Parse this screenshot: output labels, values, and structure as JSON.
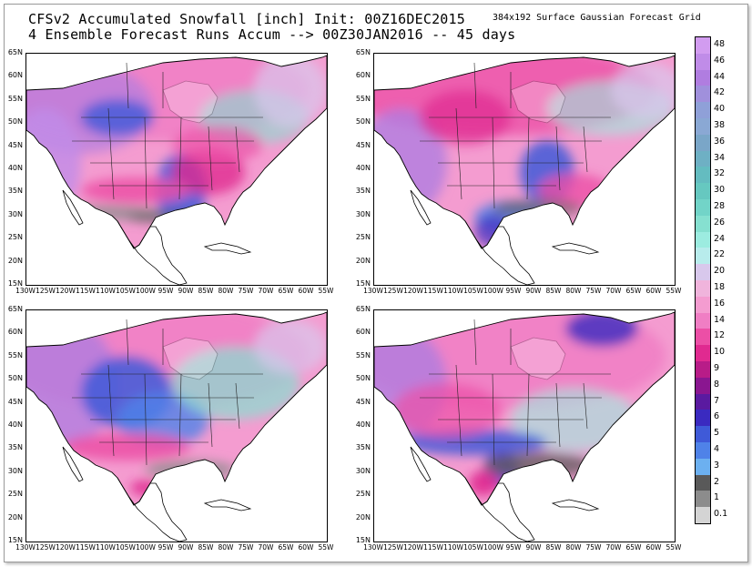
{
  "header": {
    "title_line1": "CFSv2 Accumulated Snowfall [inch] Init: 00Z16DEC2015",
    "title_line2": "4 Ensemble Forecast Runs Accum --> 00Z30JAN2016 -- 45 days",
    "grid_note": "384x192 Surface Gaussian Forecast Grid"
  },
  "axes": {
    "lat_labels": [
      "65N",
      "60N",
      "55N",
      "50N",
      "45N",
      "40N",
      "35N",
      "30N",
      "25N",
      "20N",
      "15N"
    ],
    "lon_labels": [
      "130W",
      "125W",
      "120W",
      "115W",
      "110W",
      "105W",
      "100W",
      "95W",
      "90W",
      "85W",
      "80W",
      "75W",
      "70W",
      "65W",
      "60W",
      "55W"
    ]
  },
  "panels": [
    {
      "id": "run-1",
      "variant": 0
    },
    {
      "id": "run-2",
      "variant": 1
    },
    {
      "id": "run-3",
      "variant": 2
    },
    {
      "id": "run-4",
      "variant": 3
    }
  ],
  "colorbar": {
    "labels": [
      "48",
      "46",
      "44",
      "42",
      "40",
      "38",
      "36",
      "34",
      "32",
      "30",
      "28",
      "26",
      "24",
      "22",
      "20",
      "18",
      "16",
      "14",
      "12",
      "10",
      "9",
      "8",
      "7",
      "6",
      "5",
      "4",
      "3",
      "2",
      "1",
      "0.1"
    ],
    "colors": [
      "#d29cf0",
      "#c08ce8",
      "#b07de0",
      "#a090dc",
      "#8fa0d8",
      "#8aa8d4",
      "#7aa6c8",
      "#6eb0c4",
      "#64bcc0",
      "#66c8c0",
      "#72d4c8",
      "#86e0d0",
      "#9cece0",
      "#b8ecec",
      "#d8c8ec",
      "#f0b4dc",
      "#f49cd0",
      "#f07ec4",
      "#ec4fa6",
      "#e02a90",
      "#b81c88",
      "#8a1690",
      "#5a1aa0",
      "#3a2ac0",
      "#3f5ad8",
      "#4f82e8",
      "#6cb0f0",
      "#595959",
      "#8c8c8c",
      "#d4d4d4"
    ]
  }
}
